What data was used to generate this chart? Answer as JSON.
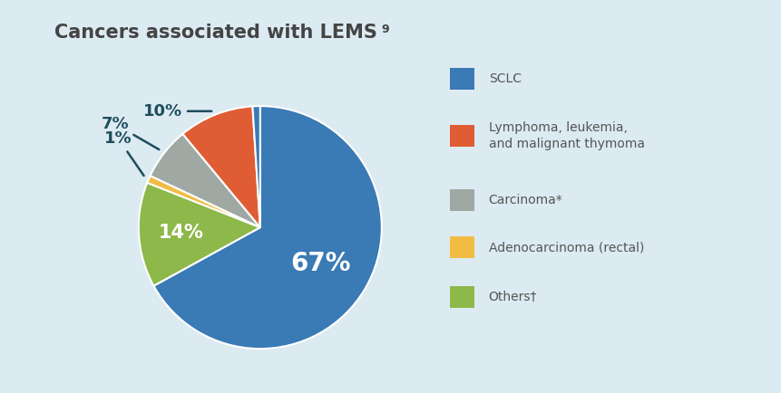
{
  "title": "Cancers associated with LEMS",
  "superscript": "9",
  "bg_color": "#dceaf2",
  "pie_sizes": [
    67,
    14,
    1,
    7,
    10,
    1
  ],
  "pie_colors": [
    "#3a7ab5",
    "#8db84a",
    "#f0bc42",
    "#9fa8a3",
    "#e05c35",
    "#3a7ab5"
  ],
  "pie_edge_color": "white",
  "pie_edge_width": 1.5,
  "inside_labels": [
    "67%",
    "14%",
    "",
    "",
    "",
    ""
  ],
  "inside_label_fontsize": [
    20,
    15,
    0,
    0,
    0,
    0
  ],
  "inside_label_r": [
    0.58,
    0.65,
    0,
    0,
    0,
    0
  ],
  "outside_labels": [
    "",
    "",
    "1%",
    "7%",
    "10%",
    ""
  ],
  "outside_label_offsets": [
    null,
    null,
    [
      -0.22,
      0.32
    ],
    [
      -0.38,
      0.22
    ],
    [
      -0.42,
      0.0
    ],
    null
  ],
  "label_color": "#1e4d5c",
  "label_fontsize": 13,
  "legend_labels": [
    "SCLC",
    "Lymphoma, leukemia,\nand malignant thymoma",
    "Carcinoma*",
    "Adenocarcinoma (rectal)",
    "Others†"
  ],
  "legend_colors": [
    "#3a7ab5",
    "#e05c35",
    "#9fa8a3",
    "#f0bc42",
    "#8db84a"
  ],
  "legend_text_color": "#555555",
  "title_color": "#444444",
  "title_fontsize": 15,
  "figsize": [
    8.62,
    4.34
  ],
  "dpi": 100
}
